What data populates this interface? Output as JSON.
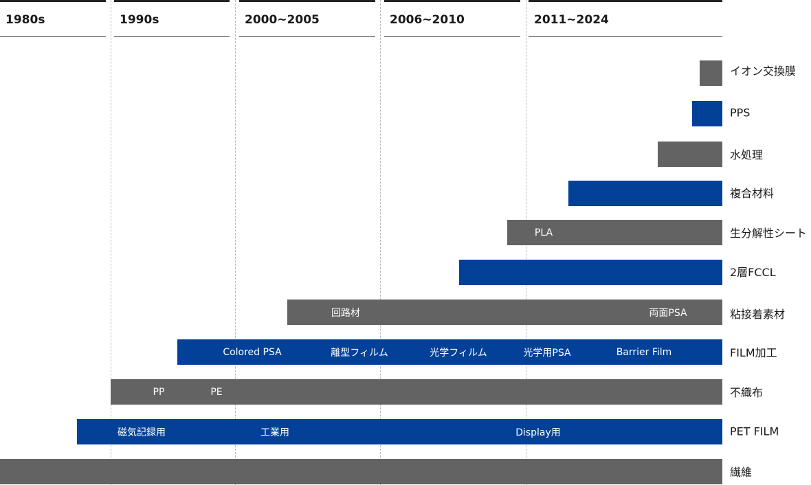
{
  "colors": {
    "gray": "#636363",
    "blue": "#034198"
  },
  "periods": [
    "1980s",
    "1990s",
    "2000~2005",
    "2006~2010",
    "2011~2024"
  ],
  "rows": [
    {
      "label": "イオン交換膜",
      "color": "gray",
      "items": []
    },
    {
      "label": "PPS",
      "color": "blue",
      "items": []
    },
    {
      "label": "水処理",
      "color": "gray",
      "items": []
    },
    {
      "label": "複合材料",
      "color": "blue",
      "items": []
    },
    {
      "label": "生分解性シート",
      "color": "gray",
      "items": [
        "PLA"
      ]
    },
    {
      "label": "2層FCCL",
      "color": "blue",
      "items": []
    },
    {
      "label": "粘接着素材",
      "color": "gray",
      "items": [
        "回路材",
        "両面PSA"
      ]
    },
    {
      "label": "FILM加工",
      "color": "blue",
      "items": [
        "Colored PSA",
        "離型フィルム",
        "光学フィルム",
        "光学用PSA",
        "Barrier Film"
      ]
    },
    {
      "label": "不織布",
      "color": "gray",
      "items": [
        "PP",
        "PE"
      ]
    },
    {
      "label": "PET FILM",
      "color": "blue",
      "items": [
        "磁気記録用",
        "工業用",
        "Display用"
      ]
    },
    {
      "label": "繊維",
      "color": "gray",
      "items": []
    }
  ]
}
